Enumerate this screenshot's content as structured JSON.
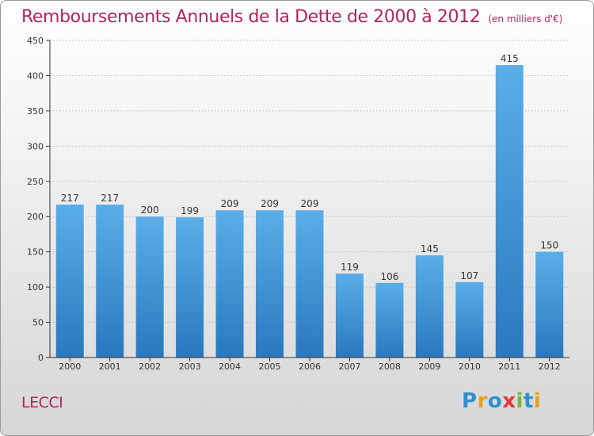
{
  "title": "Remboursements Annuels de la Dette de 2000 à 2012",
  "subtitle": "(en milliers d'€)",
  "place": "LECCI",
  "logo": {
    "text": "Proxiti",
    "letters": [
      {
        "ch": "P",
        "color": "#2f8fd0"
      },
      {
        "ch": "r",
        "color": "#e8a020"
      },
      {
        "ch": "o",
        "color": "#2f8fd0"
      },
      {
        "ch": "x",
        "color": "#e03a3a"
      },
      {
        "ch": "i",
        "color": "#7ab83a"
      },
      {
        "ch": "t",
        "color": "#2f8fd0"
      },
      {
        "ch": "i",
        "color": "#e8a020"
      }
    ]
  },
  "colors": {
    "title": "#b0245f",
    "bar_top": "#5aaee8",
    "bar_bottom": "#2a78bf",
    "axis": "#333333",
    "grid": "#c8c8c8"
  },
  "chart_data": {
    "type": "bar",
    "categories": [
      "2000",
      "2001",
      "2002",
      "2003",
      "2004",
      "2005",
      "2006",
      "2007",
      "2008",
      "2009",
      "2010",
      "2011",
      "2012"
    ],
    "values": [
      217,
      217,
      200,
      199,
      209,
      209,
      209,
      119,
      106,
      145,
      107,
      415,
      150
    ],
    "ylim": [
      0,
      450
    ],
    "yticks": [
      0,
      50,
      100,
      150,
      200,
      250,
      300,
      350,
      400,
      450
    ],
    "grid": true,
    "data_labels": true
  }
}
